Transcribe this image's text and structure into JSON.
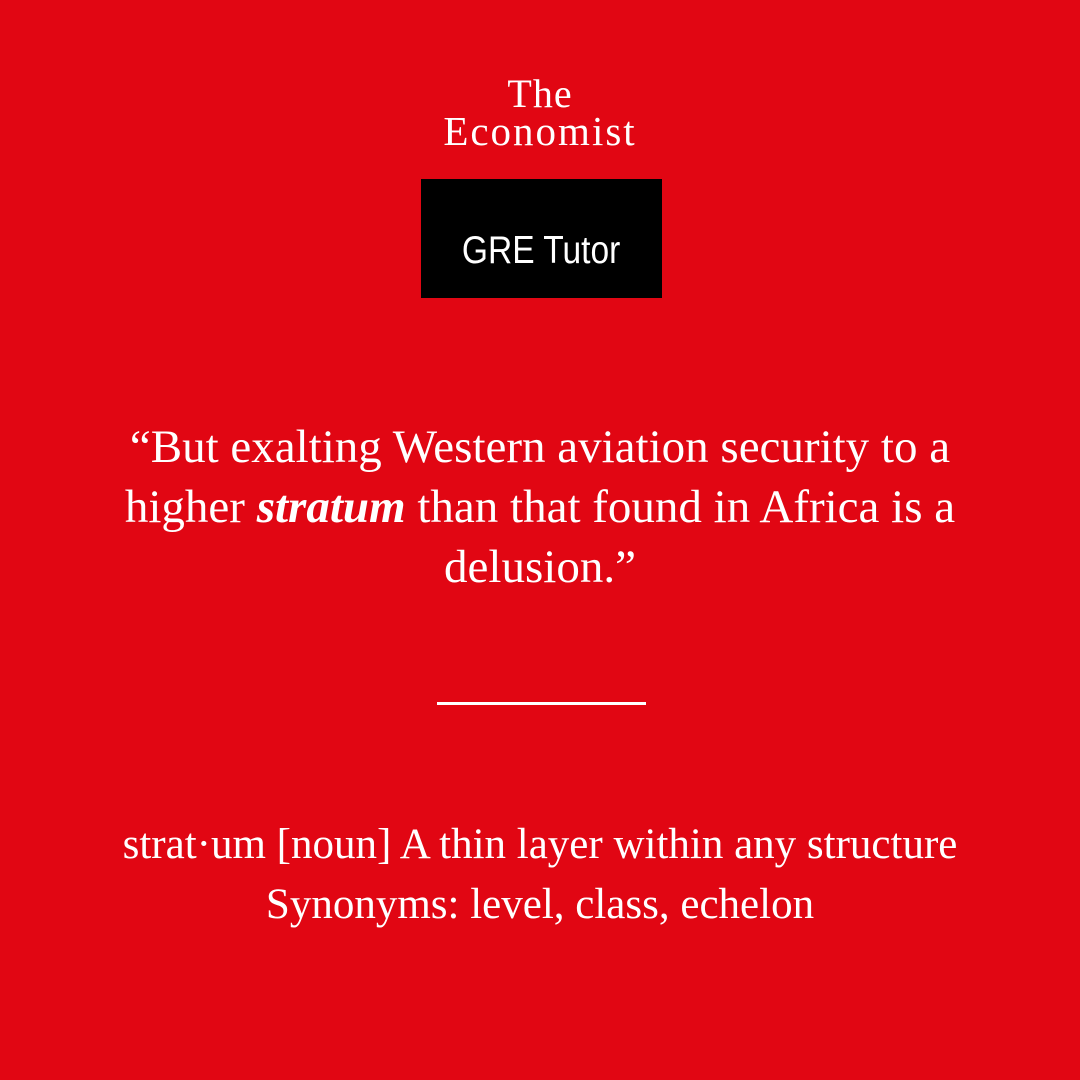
{
  "colors": {
    "background": "#e10613",
    "badge_bg": "#000000",
    "text": "#ffffff"
  },
  "logo": {
    "line1": "The",
    "line2": "Economist"
  },
  "badge": {
    "label": "GRE Tutor"
  },
  "quote": {
    "before": "“But exalting Western aviation security to a higher ",
    "keyword": "stratum",
    "after": " than that found in Africa is a delusion.”"
  },
  "definition": {
    "line1": "strat·um [noun] A thin layer within any structure",
    "line2": "Synonyms: level, class, echelon"
  }
}
